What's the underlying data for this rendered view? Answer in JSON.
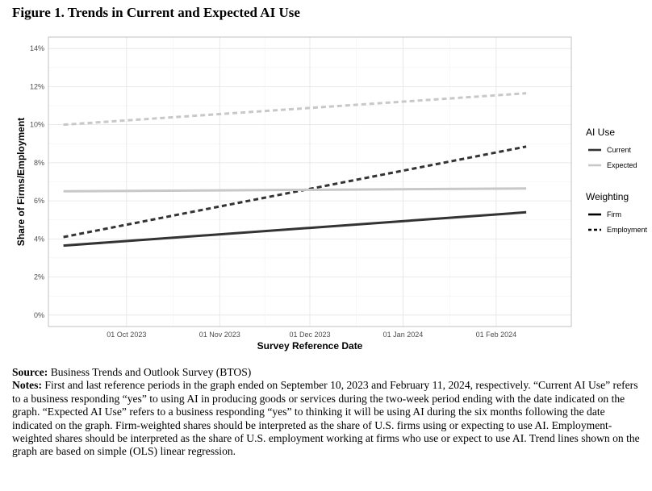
{
  "figure": {
    "title": "Figure 1. Trends in Current and Expected AI Use"
  },
  "chart_data": {
    "type": "line",
    "xlabel": "Survey Reference Date",
    "ylabel": "Share of Firms/Employment",
    "x_ticks": [
      "01 Oct 2023",
      "01 Nov 2023",
      "01 Dec 2023",
      "01 Jan 2024",
      "01 Feb 2024"
    ],
    "x_tick_dates": [
      "2023-10-01",
      "2023-11-01",
      "2023-12-01",
      "2024-01-01",
      "2024-02-01"
    ],
    "xlim": [
      "2023-09-05",
      "2024-02-26"
    ],
    "y_ticks": [
      "0%",
      "2%",
      "4%",
      "6%",
      "8%",
      "10%",
      "12%",
      "14%"
    ],
    "ylim": [
      -0.6,
      14.6
    ],
    "y_unit": "%",
    "grid": true,
    "legend_placement": "right",
    "series": [
      {
        "ai_use": "Current",
        "weighting": "Firm",
        "color": "#333333",
        "dash": "solid",
        "x": [
          "2023-09-10",
          "2024-02-11"
        ],
        "y": [
          3.65,
          5.4
        ]
      },
      {
        "ai_use": "Current",
        "weighting": "Employment",
        "color": "#333333",
        "dash": "dashed",
        "x": [
          "2023-09-10",
          "2024-02-11"
        ],
        "y": [
          4.1,
          8.85
        ]
      },
      {
        "ai_use": "Expected",
        "weighting": "Firm",
        "color": "#c8c8c8",
        "dash": "solid",
        "x": [
          "2023-09-10",
          "2024-02-11"
        ],
        "y": [
          6.5,
          6.65
        ]
      },
      {
        "ai_use": "Expected",
        "weighting": "Employment",
        "color": "#c8c8c8",
        "dash": "dashed",
        "x": [
          "2023-09-10",
          "2024-02-11"
        ],
        "y": [
          10.0,
          11.65
        ]
      }
    ],
    "legend": {
      "ai_use": {
        "title": "AI Use",
        "items": [
          {
            "label": "Current",
            "color": "#333333"
          },
          {
            "label": "Expected",
            "color": "#c8c8c8"
          }
        ]
      },
      "weighting": {
        "title": "Weighting",
        "items": [
          {
            "label": "Firm",
            "dash": "solid"
          },
          {
            "label": "Employment",
            "dash": "dashed"
          }
        ]
      }
    }
  },
  "notes": {
    "source_label": "Source:",
    "source_text": " Business Trends and Outlook Survey (BTOS)",
    "notes_label": "Notes:",
    "notes_text": " First and last reference periods in the graph ended on September 10, 2023 and February 11, 2024, respectively. “Current AI Use” refers to a business responding “yes” to using AI in producing goods or services during the two-week period ending with the date indicated on the graph. “Expected AI Use” refers to a business responding “yes” to thinking it will be using AI during the six months following the date indicated on the graph. Firm-weighted shares should be interpreted as the share of U.S. firms using or expecting to use AI. Employment-weighted shares should be interpreted as the share of U.S. employment working at firms who use or expect to use AI. Trend lines shown on the graph are based on simple (OLS) linear regression."
  }
}
